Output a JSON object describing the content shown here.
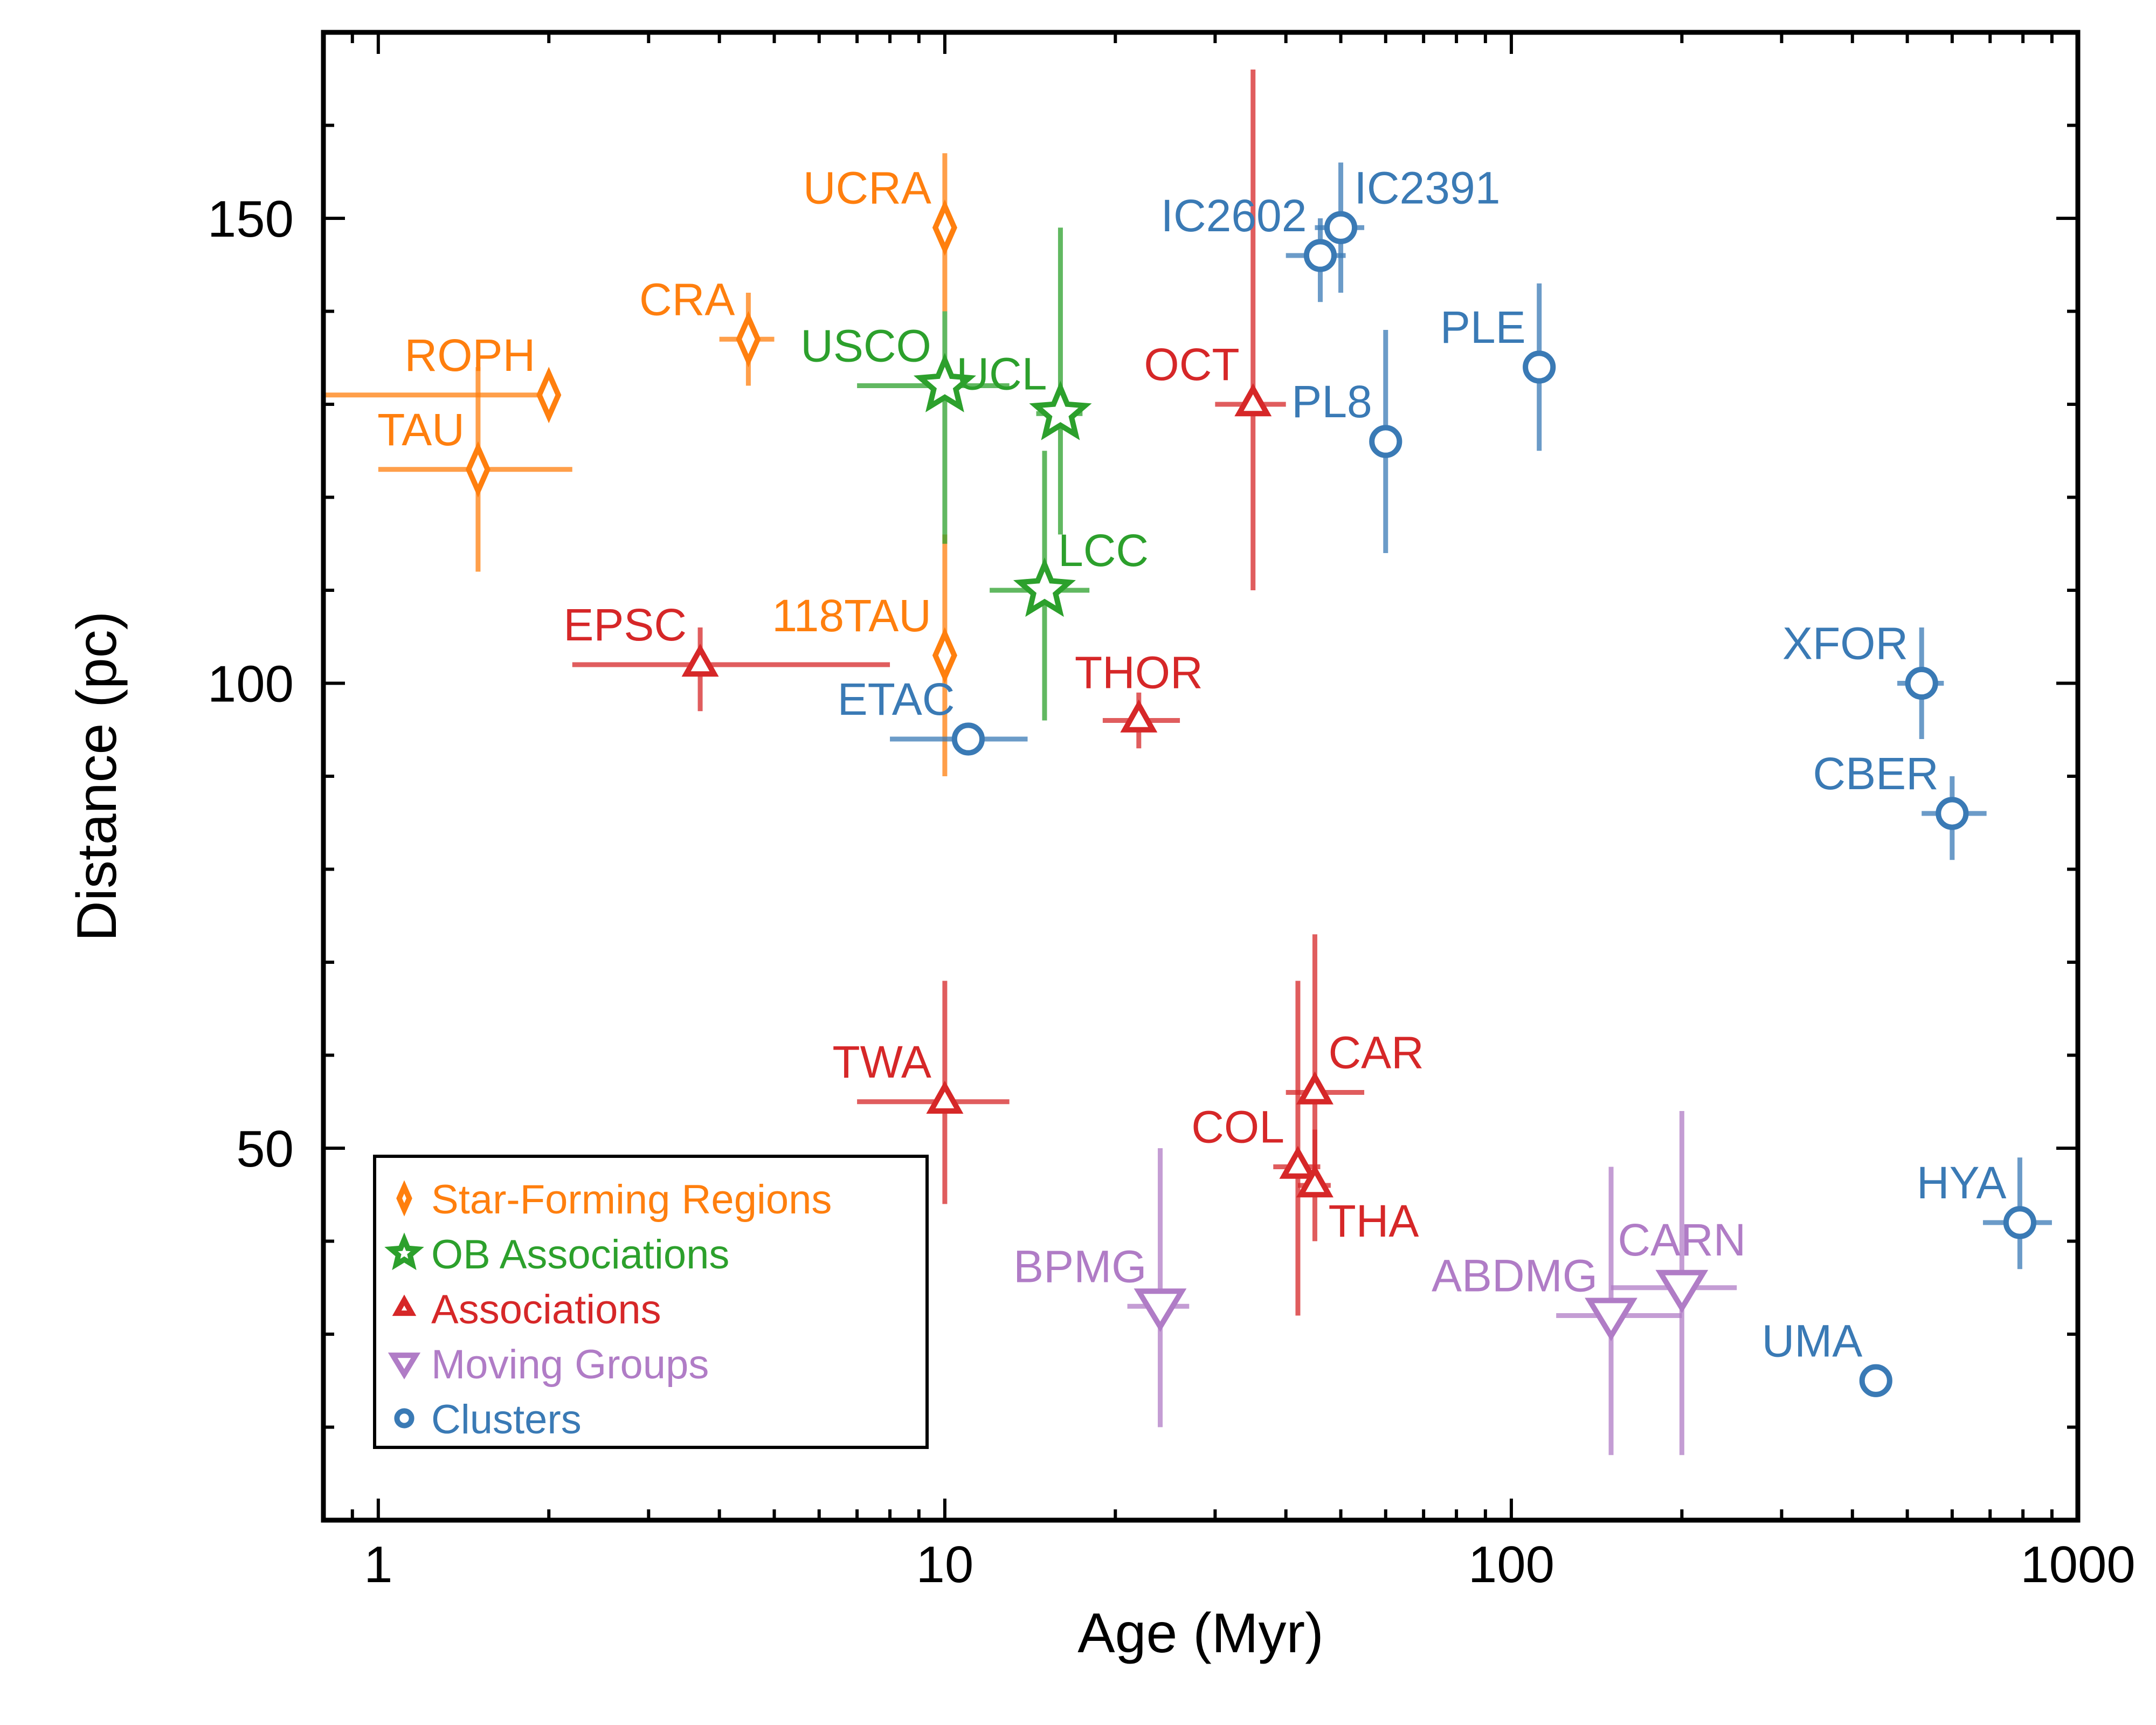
{
  "chart_data": {
    "type": "scatter",
    "title": "",
    "xlabel": "Age (Myr)",
    "ylabel": "Distance (pc)",
    "xscale": "log",
    "xlim": [
      0.8,
      1000
    ],
    "ylim": [
      10,
      170
    ],
    "xticks": [
      {
        "value": 1,
        "label": "1"
      },
      {
        "value": 10,
        "label": "10"
      },
      {
        "value": 100,
        "label": "100"
      },
      {
        "value": 1000,
        "label": "1000"
      }
    ],
    "yticks": [
      {
        "value": 50,
        "label": "50"
      },
      {
        "value": 100,
        "label": "100"
      },
      {
        "value": 150,
        "label": "150"
      }
    ],
    "legend_position": "lower-left",
    "categories": [
      {
        "name": "Star-Forming Regions",
        "color": "#ff7f0e",
        "marker": "diamond",
        "points": [
          {
            "label": "ROPH",
            "age": 2.0,
            "age_lo": 0.8,
            "age_hi": 2.0,
            "dist": 131,
            "dist_lo": 131,
            "dist_hi": 131,
            "label_pos": "upper-left"
          },
          {
            "label": "TAU",
            "age": 1.5,
            "age_lo": 1.0,
            "age_hi": 2.2,
            "dist": 123,
            "dist_lo": 112,
            "dist_hi": 134,
            "label_pos": "upper-left"
          },
          {
            "label": "CRA",
            "age": 4.5,
            "age_lo": 4.0,
            "age_hi": 5.0,
            "dist": 137,
            "dist_lo": 132,
            "dist_hi": 142,
            "label_pos": "upper-left"
          },
          {
            "label": "UCRA",
            "age": 10,
            "age_lo": 10,
            "age_hi": 10,
            "dist": 149,
            "dist_lo": 140,
            "dist_hi": 157,
            "label_pos": "upper-left"
          },
          {
            "label": "118TAU",
            "age": 10,
            "age_lo": 10,
            "age_hi": 10,
            "dist": 103,
            "dist_lo": 90,
            "dist_hi": 116,
            "label_pos": "upper-left"
          }
        ]
      },
      {
        "name": "OB Associations",
        "color": "#2ca02c",
        "marker": "star",
        "points": [
          {
            "label": "USCO",
            "age": 10,
            "age_lo": 7,
            "age_hi": 13,
            "dist": 132,
            "dist_lo": 115,
            "dist_hi": 140,
            "label_pos": "upper-left"
          },
          {
            "label": "UCL",
            "age": 16,
            "age_lo": 14.5,
            "age_hi": 17.5,
            "dist": 129,
            "dist_lo": 116,
            "dist_hi": 149,
            "label_pos": "upper-left"
          },
          {
            "label": "LCC",
            "age": 15,
            "age_lo": 12,
            "age_hi": 18,
            "dist": 110,
            "dist_lo": 96,
            "dist_hi": 125,
            "label_pos": "upper-right"
          }
        ]
      },
      {
        "name": "Associations",
        "color": "#d62728",
        "marker": "triangle-up",
        "points": [
          {
            "label": "EPSC",
            "age": 3.7,
            "age_lo": 2.2,
            "age_hi": 8.0,
            "dist": 102,
            "dist_lo": 97,
            "dist_hi": 106,
            "label_pos": "upper-left"
          },
          {
            "label": "THOR",
            "age": 22,
            "age_lo": 19,
            "age_hi": 26,
            "dist": 96,
            "dist_lo": 93,
            "dist_hi": 99,
            "label_pos": "upper-center"
          },
          {
            "label": "OCT",
            "age": 35,
            "age_lo": 30,
            "age_hi": 40,
            "dist": 130,
            "dist_lo": 110,
            "dist_hi": 166,
            "label_pos": "upper-left"
          },
          {
            "label": "TWA",
            "age": 10,
            "age_lo": 7,
            "age_hi": 13,
            "dist": 55,
            "dist_lo": 44,
            "dist_hi": 68,
            "label_pos": "upper-left"
          },
          {
            "label": "CAR",
            "age": 45,
            "age_lo": 40,
            "age_hi": 55,
            "dist": 56,
            "dist_lo": 45,
            "dist_hi": 73,
            "label_pos": "upper-right"
          },
          {
            "label": "COL",
            "age": 42,
            "age_lo": 38,
            "age_hi": 46,
            "dist": 48,
            "dist_lo": 32,
            "dist_hi": 68,
            "label_pos": "upper-left"
          },
          {
            "label": "THA",
            "age": 45,
            "age_lo": 42,
            "age_hi": 48,
            "dist": 46,
            "dist_lo": 40,
            "dist_hi": 52,
            "label_pos": "lower-right"
          }
        ]
      },
      {
        "name": "Moving Groups",
        "color": "#b07cc6",
        "marker": "triangle-down",
        "points": [
          {
            "label": "BPMG",
            "age": 24,
            "age_lo": 21,
            "age_hi": 27,
            "dist": 33,
            "dist_lo": 20,
            "dist_hi": 50,
            "label_pos": "upper-left"
          },
          {
            "label": "ABDMG",
            "age": 150,
            "age_lo": 120,
            "age_hi": 200,
            "dist": 32,
            "dist_lo": 17,
            "dist_hi": 48,
            "label_pos": "upper-left"
          },
          {
            "label": "CARN",
            "age": 200,
            "age_lo": 150,
            "age_hi": 250,
            "dist": 35,
            "dist_lo": 17,
            "dist_hi": 54,
            "label_pos": "upper-center"
          }
        ]
      },
      {
        "name": "Clusters",
        "color": "#3a7ab5",
        "marker": "circle",
        "points": [
          {
            "label": "ETAC",
            "age": 11,
            "age_lo": 8,
            "age_hi": 14,
            "dist": 94,
            "dist_lo": 94,
            "dist_hi": 94,
            "label_pos": "upper-left"
          },
          {
            "label": "IC2602",
            "age": 46,
            "age_lo": 40,
            "age_hi": 51,
            "dist": 146,
            "dist_lo": 141,
            "dist_hi": 150,
            "label_pos": "upper-left"
          },
          {
            "label": "IC2391",
            "age": 50,
            "age_lo": 45,
            "age_hi": 55,
            "dist": 149,
            "dist_lo": 142,
            "dist_hi": 156,
            "label_pos": "upper-right"
          },
          {
            "label": "PL8",
            "age": 60,
            "age_lo": 60,
            "age_hi": 60,
            "dist": 126,
            "dist_lo": 114,
            "dist_hi": 138,
            "label_pos": "upper-left"
          },
          {
            "label": "PLE",
            "age": 112,
            "age_lo": 112,
            "age_hi": 112,
            "dist": 134,
            "dist_lo": 125,
            "dist_hi": 143,
            "label_pos": "upper-left"
          },
          {
            "label": "XFOR",
            "age": 530,
            "age_lo": 480,
            "age_hi": 580,
            "dist": 100,
            "dist_lo": 94,
            "dist_hi": 106,
            "label_pos": "upper-left"
          },
          {
            "label": "CBER",
            "age": 600,
            "age_lo": 530,
            "age_hi": 690,
            "dist": 86,
            "dist_lo": 81,
            "dist_hi": 90,
            "label_pos": "upper-left"
          },
          {
            "label": "HYA",
            "age": 790,
            "age_lo": 680,
            "age_hi": 900,
            "dist": 42,
            "dist_lo": 37,
            "dist_hi": 49,
            "label_pos": "upper-left"
          },
          {
            "label": "UMA",
            "age": 440,
            "age_lo": 420,
            "age_hi": 460,
            "dist": 25,
            "dist_lo": 25,
            "dist_hi": 25,
            "label_pos": "upper-left"
          }
        ]
      }
    ]
  }
}
